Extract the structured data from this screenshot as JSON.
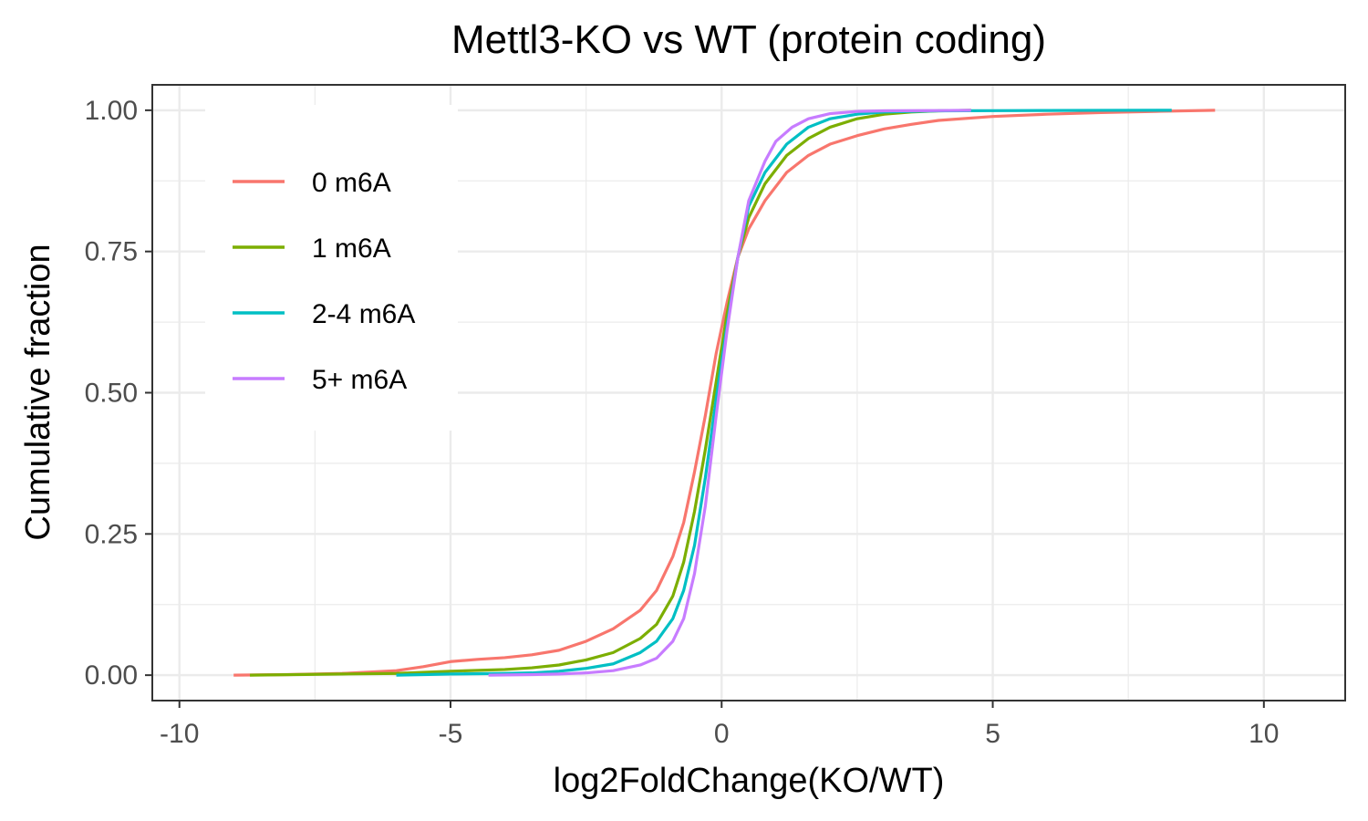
{
  "chart_data": {
    "type": "line",
    "title": "Mettl3-KO vs WT (protein coding)",
    "xlabel": "log2FoldChange(KO/WT)",
    "ylabel": "Cumulative fraction",
    "xlim": [
      -10.5,
      11.5
    ],
    "ylim": [
      -0.045,
      1.045
    ],
    "x_ticks": [
      -10,
      -5,
      0,
      5,
      10
    ],
    "x_tick_labels": [
      "-10",
      "-5",
      "0",
      "5",
      "10"
    ],
    "y_ticks": [
      0,
      0.25,
      0.5,
      0.75,
      1.0
    ],
    "y_tick_labels": [
      "0.00",
      "0.25",
      "0.50",
      "0.75",
      "1.00"
    ],
    "grid": true,
    "legend_position": "top-left",
    "series": [
      {
        "name": "0 m6A",
        "color": "#F8766D",
        "points": [
          [
            -9.0,
            0.0
          ],
          [
            -8.0,
            0.001
          ],
          [
            -7.0,
            0.003
          ],
          [
            -6.0,
            0.008
          ],
          [
            -5.5,
            0.015
          ],
          [
            -5.0,
            0.024
          ],
          [
            -4.5,
            0.028
          ],
          [
            -4.0,
            0.031
          ],
          [
            -3.5,
            0.036
          ],
          [
            -3.0,
            0.044
          ],
          [
            -2.5,
            0.06
          ],
          [
            -2.0,
            0.082
          ],
          [
            -1.5,
            0.115
          ],
          [
            -1.2,
            0.15
          ],
          [
            -0.9,
            0.21
          ],
          [
            -0.7,
            0.27
          ],
          [
            -0.5,
            0.36
          ],
          [
            -0.3,
            0.46
          ],
          [
            -0.1,
            0.57
          ],
          [
            0.1,
            0.66
          ],
          [
            0.3,
            0.74
          ],
          [
            0.5,
            0.79
          ],
          [
            0.8,
            0.84
          ],
          [
            1.2,
            0.89
          ],
          [
            1.6,
            0.92
          ],
          [
            2.0,
            0.94
          ],
          [
            2.5,
            0.955
          ],
          [
            3.0,
            0.967
          ],
          [
            3.5,
            0.975
          ],
          [
            4.0,
            0.982
          ],
          [
            5.0,
            0.989
          ],
          [
            6.0,
            0.993
          ],
          [
            7.0,
            0.996
          ],
          [
            8.0,
            0.998
          ],
          [
            9.1,
            1.0
          ]
        ]
      },
      {
        "name": "1 m6A",
        "color": "#7CAE00",
        "points": [
          [
            -8.7,
            0.0
          ],
          [
            -7.0,
            0.002
          ],
          [
            -6.0,
            0.003
          ],
          [
            -5.0,
            0.007
          ],
          [
            -4.0,
            0.01
          ],
          [
            -3.5,
            0.013
          ],
          [
            -3.0,
            0.018
          ],
          [
            -2.5,
            0.027
          ],
          [
            -2.0,
            0.04
          ],
          [
            -1.5,
            0.065
          ],
          [
            -1.2,
            0.09
          ],
          [
            -0.9,
            0.14
          ],
          [
            -0.7,
            0.2
          ],
          [
            -0.5,
            0.29
          ],
          [
            -0.3,
            0.4
          ],
          [
            -0.1,
            0.52
          ],
          [
            0.1,
            0.64
          ],
          [
            0.3,
            0.74
          ],
          [
            0.5,
            0.81
          ],
          [
            0.8,
            0.87
          ],
          [
            1.2,
            0.92
          ],
          [
            1.6,
            0.95
          ],
          [
            2.0,
            0.97
          ],
          [
            2.5,
            0.985
          ],
          [
            3.0,
            0.993
          ],
          [
            3.5,
            0.997
          ],
          [
            4.0,
            0.999
          ],
          [
            4.6,
            1.0
          ]
        ]
      },
      {
        "name": "2-4 m6A",
        "color": "#00BFC4",
        "points": [
          [
            -6.0,
            0.0
          ],
          [
            -5.0,
            0.002
          ],
          [
            -4.0,
            0.003
          ],
          [
            -3.5,
            0.004
          ],
          [
            -3.0,
            0.007
          ],
          [
            -2.5,
            0.012
          ],
          [
            -2.0,
            0.02
          ],
          [
            -1.5,
            0.04
          ],
          [
            -1.2,
            0.06
          ],
          [
            -0.9,
            0.1
          ],
          [
            -0.7,
            0.15
          ],
          [
            -0.5,
            0.23
          ],
          [
            -0.3,
            0.35
          ],
          [
            -0.1,
            0.49
          ],
          [
            0.1,
            0.62
          ],
          [
            0.3,
            0.74
          ],
          [
            0.5,
            0.83
          ],
          [
            0.8,
            0.89
          ],
          [
            1.2,
            0.94
          ],
          [
            1.6,
            0.97
          ],
          [
            2.0,
            0.985
          ],
          [
            2.5,
            0.993
          ],
          [
            3.0,
            0.997
          ],
          [
            4.0,
            0.999
          ],
          [
            5.0,
            0.9993
          ],
          [
            6.0,
            0.9996
          ],
          [
            7.0,
            0.9999
          ],
          [
            8.3,
            1.0
          ]
        ]
      },
      {
        "name": "5+ m6A",
        "color": "#C77CFF",
        "points": [
          [
            -4.3,
            0.0
          ],
          [
            -3.5,
            0.001
          ],
          [
            -3.0,
            0.002
          ],
          [
            -2.5,
            0.004
          ],
          [
            -2.0,
            0.008
          ],
          [
            -1.5,
            0.018
          ],
          [
            -1.2,
            0.03
          ],
          [
            -0.9,
            0.06
          ],
          [
            -0.7,
            0.1
          ],
          [
            -0.5,
            0.18
          ],
          [
            -0.3,
            0.3
          ],
          [
            -0.1,
            0.46
          ],
          [
            0.1,
            0.61
          ],
          [
            0.3,
            0.74
          ],
          [
            0.5,
            0.84
          ],
          [
            0.8,
            0.91
          ],
          [
            1.0,
            0.945
          ],
          [
            1.3,
            0.97
          ],
          [
            1.6,
            0.985
          ],
          [
            2.0,
            0.994
          ],
          [
            2.5,
            0.998
          ],
          [
            3.0,
            0.999
          ],
          [
            4.0,
            0.9995
          ],
          [
            4.6,
            1.0
          ]
        ]
      }
    ]
  }
}
